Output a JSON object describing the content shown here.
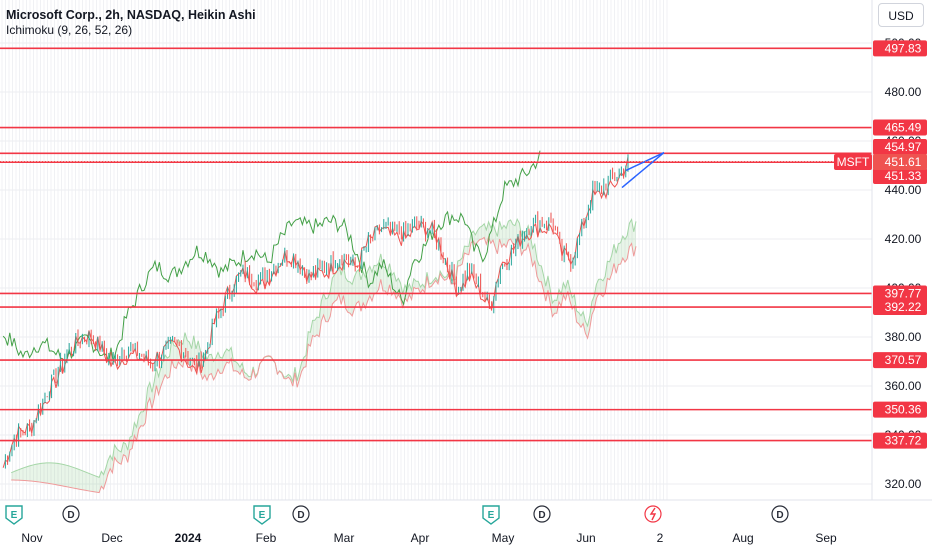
{
  "header": {
    "title": "Microsoft Corp., 2h, NASDAQ, Heikin Ashi",
    "indicator": "Ichimoku (9, 26, 52, 26)",
    "currency": "USD"
  },
  "colors": {
    "up": "#26a69a",
    "down": "#ef5350",
    "level_line": "#f23645",
    "trendline": "#2962ff",
    "ticker_label": "#f23645",
    "grid": "#eceef2"
  },
  "chart_data": {
    "type": "line",
    "title": "Microsoft Corp., 2h, NASDAQ, Heikin Ashi",
    "ticker": "MSFT",
    "last_price": "451.61",
    "ylim": [
      315,
      510
    ],
    "y_ticks": [
      "320.00",
      "340.00",
      "360.00",
      "380.00",
      "400.00",
      "420.00",
      "440.00",
      "460.00",
      "480.00",
      "500.00"
    ],
    "x_ticks": [
      "Nov",
      "Dec",
      "2024",
      "Feb",
      "Mar",
      "Apr",
      "May",
      "Jun",
      "2",
      "Aug",
      "Sep"
    ],
    "horizontal_levels": [
      {
        "value": 497.83,
        "label": "497.83"
      },
      {
        "value": 465.49,
        "label": "465.49"
      },
      {
        "value": 454.97,
        "label": "454.97"
      },
      {
        "value": 451.33,
        "label": "451.33"
      },
      {
        "value": 397.77,
        "label": "397.77"
      },
      {
        "value": 392.22,
        "label": "392.22"
      },
      {
        "value": 370.57,
        "label": "370.57"
      },
      {
        "value": 350.36,
        "label": "350.36"
      },
      {
        "value": 337.72,
        "label": "337.72"
      }
    ],
    "price_path": [
      {
        "d": "Oct 20",
        "v": 327
      },
      {
        "d": "Oct 25",
        "v": 337
      },
      {
        "d": "Oct 31",
        "v": 343
      },
      {
        "d": "Nov 3",
        "v": 352
      },
      {
        "d": "Nov 8",
        "v": 362
      },
      {
        "d": "Nov 14",
        "v": 370
      },
      {
        "d": "Nov 20",
        "v": 378
      },
      {
        "d": "Nov 24",
        "v": 381
      },
      {
        "d": "Nov 28",
        "v": 378
      },
      {
        "d": "Dec 3",
        "v": 370
      },
      {
        "d": "Dec 8",
        "v": 373
      },
      {
        "d": "Dec 12",
        "v": 373
      },
      {
        "d": "Dec 18",
        "v": 371
      },
      {
        "d": "Dec 22",
        "v": 374
      },
      {
        "d": "Dec 28",
        "v": 376
      },
      {
        "d": "Jan 2",
        "v": 371
      },
      {
        "d": "Jan 5",
        "v": 368
      },
      {
        "d": "Jan 9",
        "v": 374
      },
      {
        "d": "Jan 13",
        "v": 388
      },
      {
        "d": "Jan 20",
        "v": 399
      },
      {
        "d": "Jan 25",
        "v": 405
      },
      {
        "d": "Jan 31",
        "v": 404
      },
      {
        "d": "Feb 5",
        "v": 410
      },
      {
        "d": "Feb 10",
        "v": 413
      },
      {
        "d": "Feb 15",
        "v": 409
      },
      {
        "d": "Feb 20",
        "v": 404
      },
      {
        "d": "Feb 25",
        "v": 410
      },
      {
        "d": "Mar 1",
        "v": 413
      },
      {
        "d": "Mar 5",
        "v": 412
      },
      {
        "d": "Mar 10",
        "v": 406
      },
      {
        "d": "Mar 15",
        "v": 418
      },
      {
        "d": "Mar 20",
        "v": 427
      },
      {
        "d": "Mar 25",
        "v": 424
      },
      {
        "d": "Mar 30",
        "v": 421
      },
      {
        "d": "Apr 4",
        "v": 424
      },
      {
        "d": "Apr 9",
        "v": 425
      },
      {
        "d": "Apr 12",
        "v": 421
      },
      {
        "d": "Apr 16",
        "v": 410
      },
      {
        "d": "Apr 20",
        "v": 399
      },
      {
        "d": "Apr 25",
        "v": 406
      },
      {
        "d": "Apr 29",
        "v": 400
      },
      {
        "d": "May 3",
        "v": 394
      },
      {
        "d": "May 7",
        "v": 410
      },
      {
        "d": "May 12",
        "v": 414
      },
      {
        "d": "May 18",
        "v": 423
      },
      {
        "d": "May 23",
        "v": 428
      },
      {
        "d": "May 28",
        "v": 429
      },
      {
        "d": "Jun 1",
        "v": 414
      },
      {
        "d": "Jun 5",
        "v": 410
      },
      {
        "d": "Jun 9",
        "v": 422
      },
      {
        "d": "Jun 13",
        "v": 438
      },
      {
        "d": "Jun 18",
        "v": 444
      },
      {
        "d": "Jun 23",
        "v": 447
      },
      {
        "d": "Jun 28",
        "v": 451
      }
    ]
  }
}
